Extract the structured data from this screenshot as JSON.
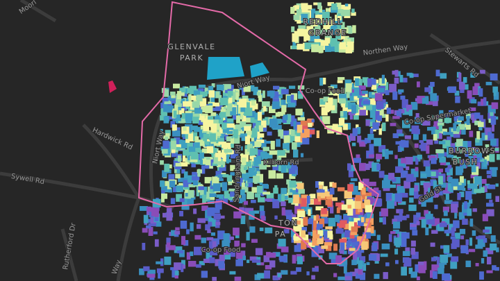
{
  "labels": [
    "Moorl",
    "GLENVALE",
    "PARK",
    "REDHILL",
    "GRANGE",
    "Northen Way",
    "Stewarts Rd",
    "Niort Way",
    "Co-op Food",
    "Hardwick Rd",
    "Co-op Supermarket",
    "BURROWS",
    "BUSH",
    "Niort Way",
    "Sywell Rd",
    "Kilborn Rd",
    "Sandringham Rd",
    "Rutherford Dr",
    "TON",
    "PA",
    "Gold St",
    "Co-op Food",
    "Way"
  ]
}
